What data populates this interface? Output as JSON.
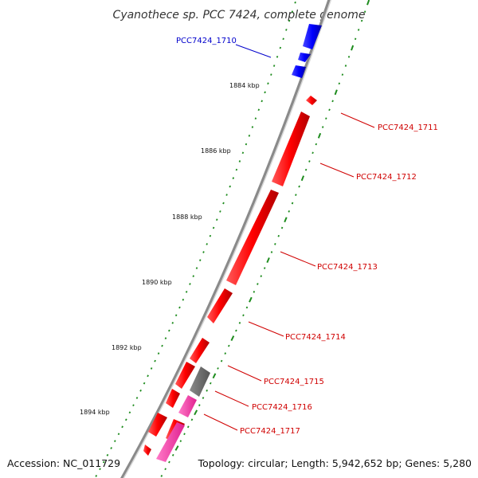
{
  "title": "Cyanothece sp. PCC 7424, complete genome",
  "footer": {
    "accession": "Accession: NC_011729",
    "summary": "Topology: circular; Length: 5,942,652 bp; Genes: 5,280"
  },
  "colors": {
    "background": "#ffffff",
    "backbone": "#8a8a8a",
    "backbone_light": "#d8d8d8",
    "tick_dots": "#1e8c1e",
    "forward_gene": "#ff0000",
    "highlight_gene": "#0000ff",
    "other_gene": "#6e6e6e",
    "pink_gene": "#ff3fae",
    "label_red": "#d00000",
    "label_blue": "#0000cc"
  },
  "scale_labels": [
    "1884 kbp",
    "1886 kbp",
    "1888 kbp",
    "1890 kbp",
    "1892 kbp",
    "1894 kbp"
  ],
  "genes": [
    {
      "id": "PCC7424_1710",
      "color": "blue"
    },
    {
      "id": "PCC7424_1711",
      "color": "red"
    },
    {
      "id": "PCC7424_1712",
      "color": "red"
    },
    {
      "id": "PCC7424_1713",
      "color": "red"
    },
    {
      "id": "PCC7424_1714",
      "color": "red"
    },
    {
      "id": "PCC7424_1715",
      "color": "red"
    },
    {
      "id": "PCC7424_1716",
      "color": "red"
    },
    {
      "id": "PCC7424_1717",
      "color": "red"
    }
  ]
}
